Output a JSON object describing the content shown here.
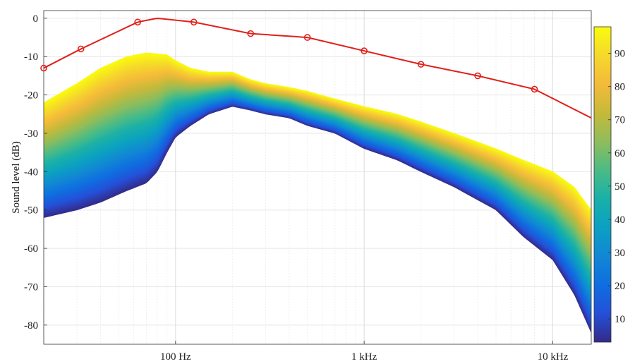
{
  "chart_data": {
    "type": "area",
    "title": "",
    "xlabel": "",
    "ylabel": "Sound level (dB)",
    "x_scale": "log",
    "xlim_hz": [
      20,
      16000
    ],
    "ylim": [
      -85,
      2
    ],
    "grid": true,
    "x_tick_labels": [
      "100 Hz",
      "1 kHz",
      "10 kHz"
    ],
    "x_tick_values_hz": [
      100,
      1000,
      10000
    ],
    "y_ticks": [
      0,
      -10,
      -20,
      -30,
      -40,
      -50,
      -60,
      -70,
      -80
    ],
    "y_tick_labels": [
      "0",
      "-10",
      "-20",
      "-30",
      "-40",
      "-50",
      "-60",
      "-70",
      "-80"
    ],
    "reference_line": {
      "color": "#e0201b",
      "marker": "circle",
      "points_hz_db": [
        [
          20,
          -13
        ],
        [
          31.5,
          -8
        ],
        [
          63,
          -1
        ],
        [
          80,
          0
        ],
        [
          125,
          -1
        ],
        [
          250,
          -4
        ],
        [
          500,
          -5
        ],
        [
          1000,
          -8.5
        ],
        [
          2000,
          -12
        ],
        [
          4000,
          -15
        ],
        [
          8000,
          -18.5
        ],
        [
          16000,
          -26
        ]
      ],
      "marker_hz": [
        20,
        31.5,
        63,
        125,
        250,
        500,
        1000,
        2000,
        4000,
        8000
      ]
    },
    "band_top_hz_db": [
      [
        20,
        -22
      ],
      [
        30,
        -17
      ],
      [
        40,
        -13
      ],
      [
        55,
        -10
      ],
      [
        70,
        -9
      ],
      [
        90,
        -9.5
      ],
      [
        100,
        -11
      ],
      [
        120,
        -13
      ],
      [
        150,
        -14
      ],
      [
        200,
        -14
      ],
      [
        250,
        -16
      ],
      [
        300,
        -17
      ],
      [
        400,
        -18
      ],
      [
        500,
        -19
      ],
      [
        700,
        -21
      ],
      [
        1000,
        -23
      ],
      [
        1500,
        -25
      ],
      [
        2000,
        -27
      ],
      [
        3000,
        -30
      ],
      [
        5000,
        -34
      ],
      [
        7000,
        -37
      ],
      [
        10000,
        -40
      ],
      [
        13000,
        -44
      ],
      [
        16000,
        -50
      ]
    ],
    "band_bottom_hz_db": [
      [
        20,
        -52
      ],
      [
        30,
        -50
      ],
      [
        40,
        -48
      ],
      [
        55,
        -45
      ],
      [
        70,
        -43
      ],
      [
        80,
        -40
      ],
      [
        90,
        -35
      ],
      [
        100,
        -31
      ],
      [
        120,
        -28
      ],
      [
        150,
        -25
      ],
      [
        200,
        -23
      ],
      [
        250,
        -24
      ],
      [
        300,
        -25
      ],
      [
        400,
        -26
      ],
      [
        500,
        -28
      ],
      [
        700,
        -30
      ],
      [
        1000,
        -34
      ],
      [
        1500,
        -37
      ],
      [
        2000,
        -40
      ],
      [
        3000,
        -44
      ],
      [
        5000,
        -50
      ],
      [
        7000,
        -57
      ],
      [
        10000,
        -63
      ],
      [
        13000,
        -72
      ],
      [
        16000,
        -82
      ]
    ],
    "colorbar": {
      "range": [
        3,
        98
      ],
      "ticks": [
        10,
        20,
        30,
        40,
        50,
        60,
        70,
        80,
        90
      ],
      "tick_labels": [
        "10",
        "20",
        "30",
        "40",
        "50",
        "60",
        "70",
        "80",
        "90"
      ],
      "colormap": "parula",
      "colors": [
        "#352a87",
        "#2450d8",
        "#0f6ee0",
        "#1287d4",
        "#0ba0c2",
        "#19b0a8",
        "#4bbb85",
        "#8fbd5b",
        "#c6b93a",
        "#f4ba3a",
        "#f6d82b",
        "#f9fb0e"
      ]
    }
  }
}
